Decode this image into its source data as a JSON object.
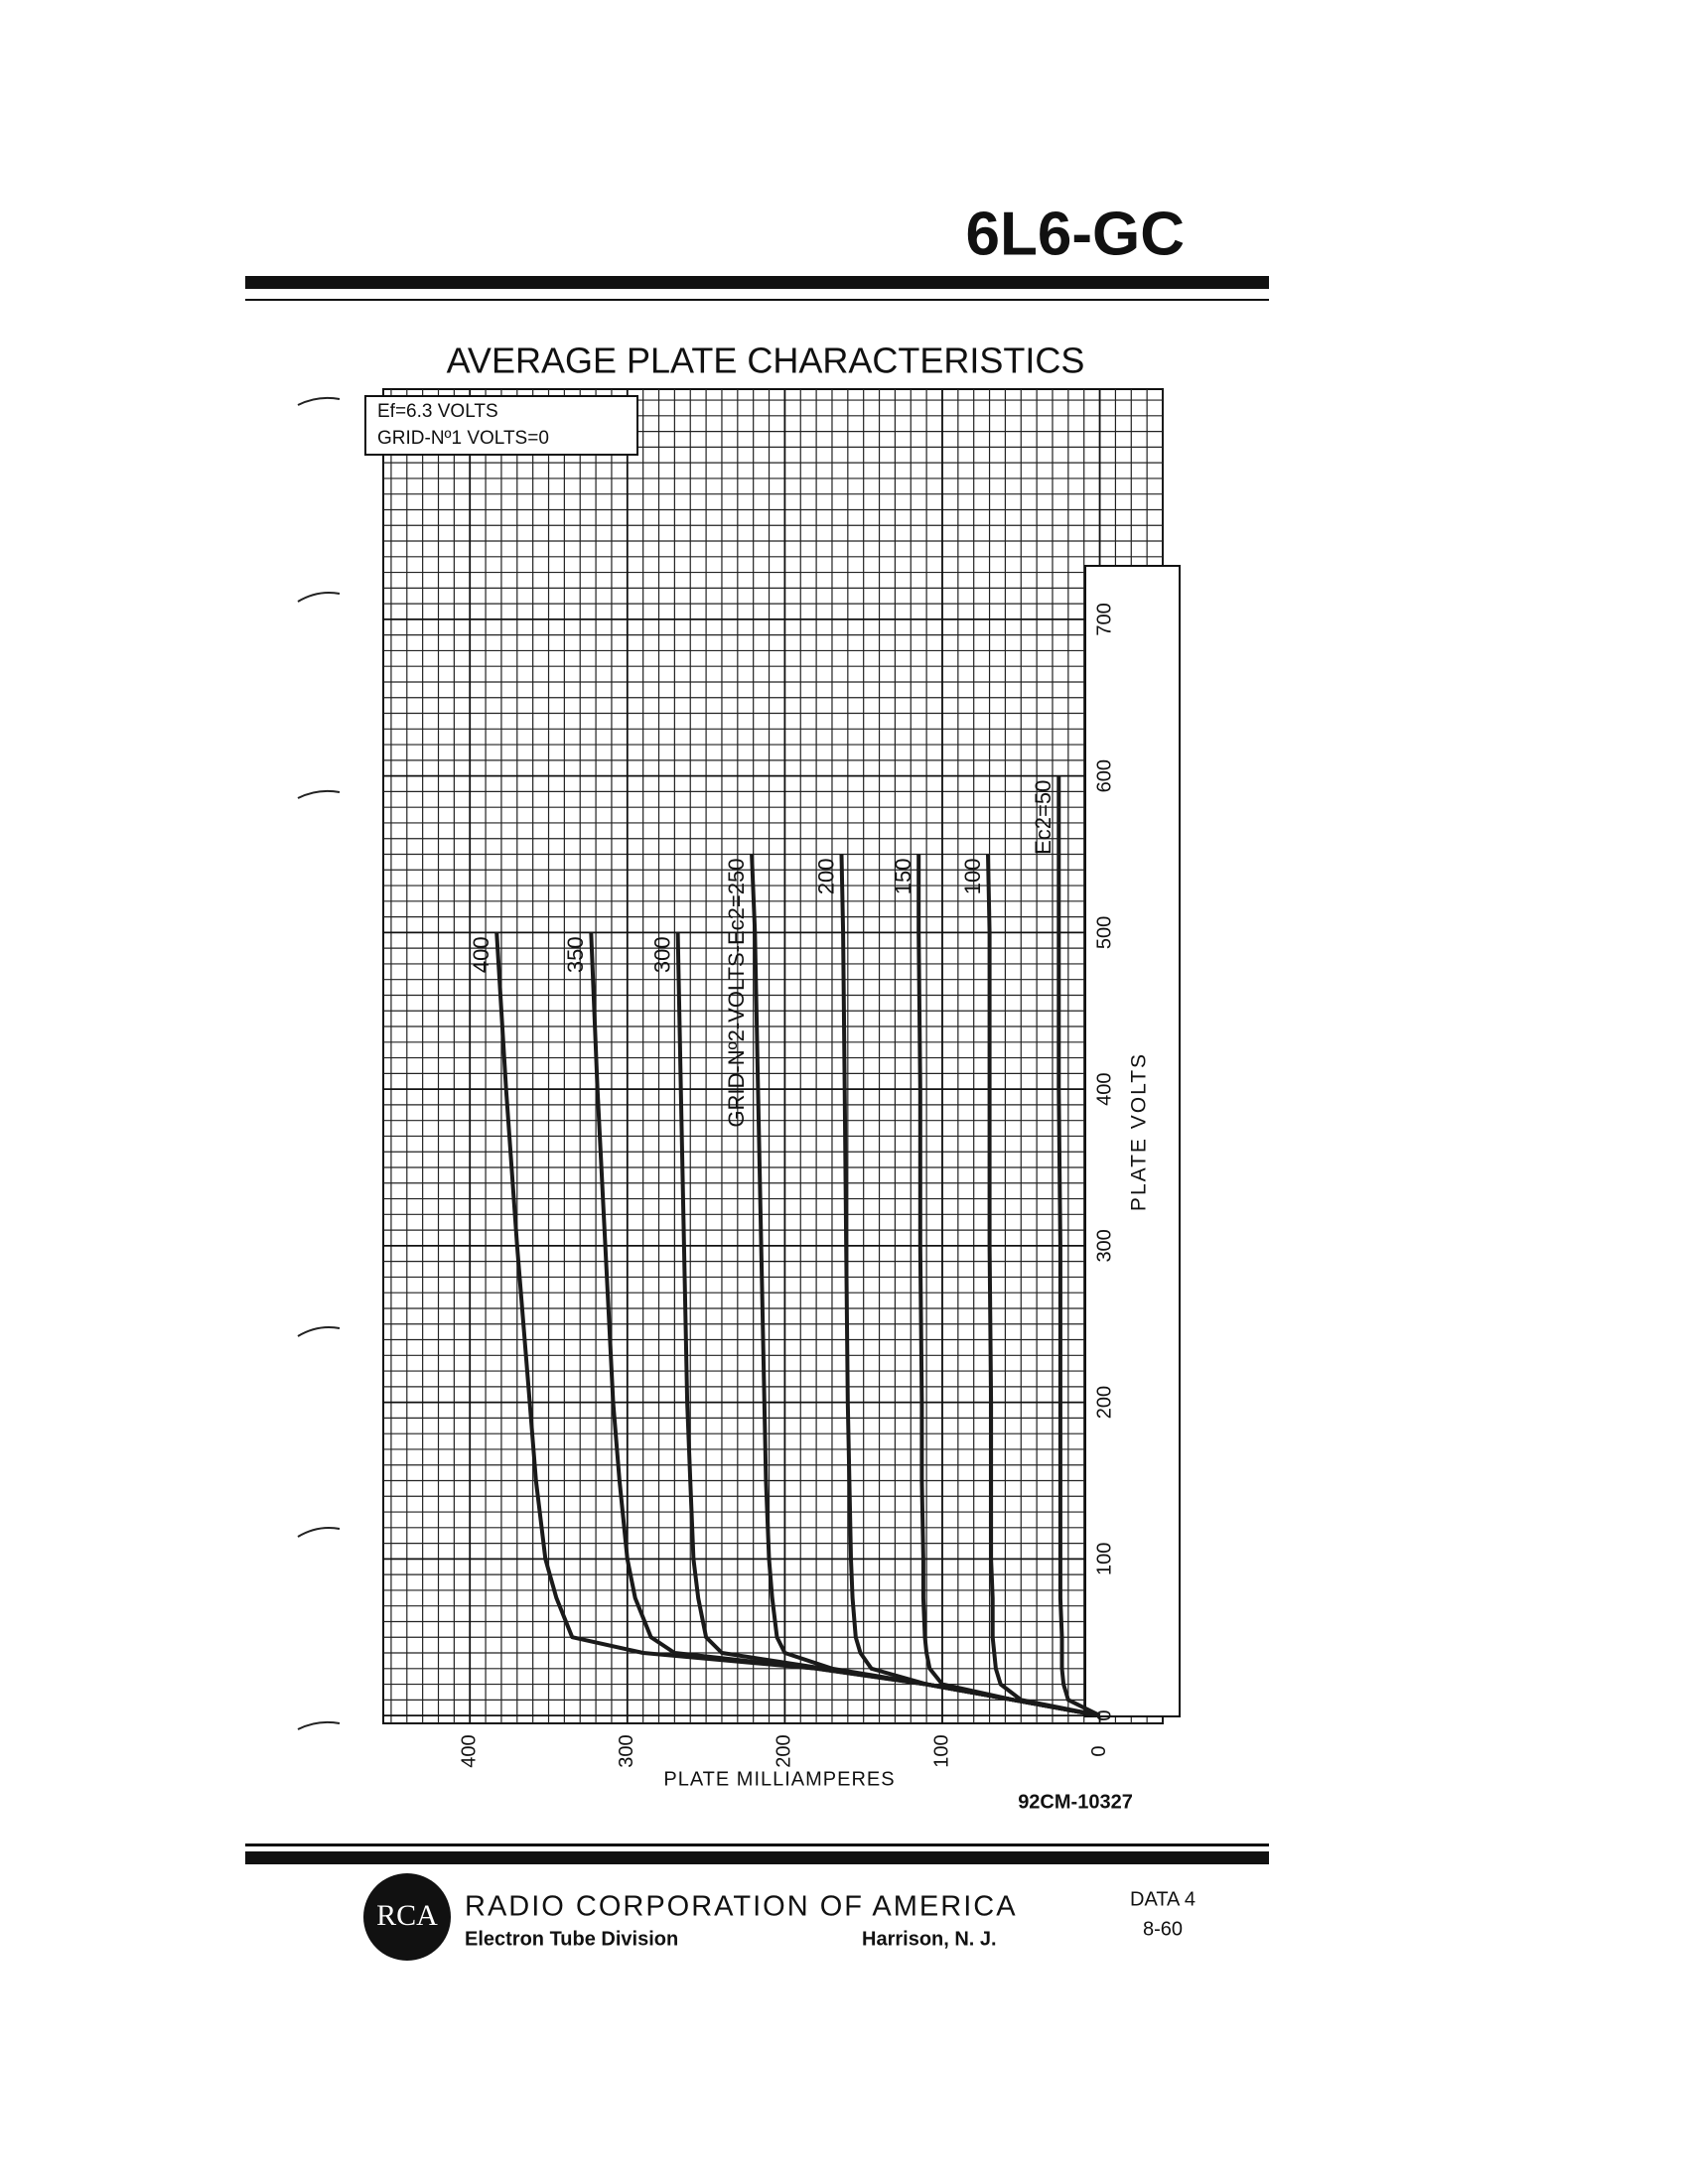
{
  "header": {
    "model": "6L6-GC"
  },
  "chart_data": {
    "type": "line",
    "title": "AVERAGE PLATE CHARACTERISTICS",
    "conditions": [
      "Ef=6.3 VOLTS",
      "GRID-Nº1 VOLTS=0"
    ],
    "x_label": "PLATE VOLTS",
    "y_label": "PLATE MILLIAMPERES",
    "x": [
      0,
      10,
      20,
      30,
      40,
      50,
      75,
      100,
      150,
      200,
      300,
      400,
      500,
      550,
      600
    ],
    "xlim": [
      -5,
      847
    ],
    "xticks": [
      0,
      100,
      200,
      300,
      400,
      500,
      600,
      700
    ],
    "ylim": [
      -40,
      455
    ],
    "yticks": [
      0,
      100,
      200,
      300,
      400
    ],
    "grid": true,
    "grid_step": 10,
    "series": [
      {
        "name": "400",
        "color": "#1a1a1a",
        "values": [
          0,
          55,
          110,
          180,
          290,
          335,
          345,
          352,
          358,
          362,
          370,
          377,
          383,
          null,
          null
        ]
      },
      {
        "name": "350",
        "color": "#1a1a1a",
        "values": [
          0,
          55,
          110,
          180,
          270,
          285,
          295,
          300,
          305,
          309,
          314,
          319,
          323,
          null,
          null
        ]
      },
      {
        "name": "300",
        "color": "#1a1a1a",
        "values": [
          0,
          55,
          110,
          175,
          240,
          250,
          255,
          258,
          260,
          262,
          264,
          266,
          268,
          null,
          null
        ]
      },
      {
        "name": "GRID-Nº2-VOLTS-Ec2=250",
        "color": "#1a1a1a",
        "values": [
          0,
          55,
          110,
          170,
          200,
          205,
          208,
          210,
          212,
          213,
          215,
          217,
          219,
          221,
          null
        ]
      },
      {
        "name": "200",
        "color": "#1a1a1a",
        "values": [
          0,
          55,
          110,
          145,
          152,
          155,
          157,
          158,
          159,
          160,
          161,
          162,
          163,
          164,
          null
        ]
      },
      {
        "name": "150",
        "color": "#1a1a1a",
        "values": [
          0,
          55,
          100,
          108,
          110,
          111,
          112,
          112,
          113,
          113,
          114,
          114,
          115,
          115,
          null
        ]
      },
      {
        "name": "100",
        "color": "#1a1a1a",
        "values": [
          0,
          50,
          63,
          66,
          67,
          68,
          68,
          69,
          69,
          69,
          70,
          70,
          70,
          71,
          null
        ]
      },
      {
        "name": "Ec2=50",
        "color": "#1a1a1a",
        "values": [
          0,
          20,
          23,
          24,
          24,
          24,
          25,
          25,
          25,
          25,
          25,
          26,
          26,
          26,
          26
        ]
      }
    ],
    "drawing_number": "92CM-10327"
  },
  "footer": {
    "logo": "RCA",
    "company": "RADIO CORPORATION OF AMERICA",
    "division": "Electron Tube Division",
    "location": "Harrison, N. J.",
    "data_sheet": "DATA 4",
    "date": "8-60"
  }
}
